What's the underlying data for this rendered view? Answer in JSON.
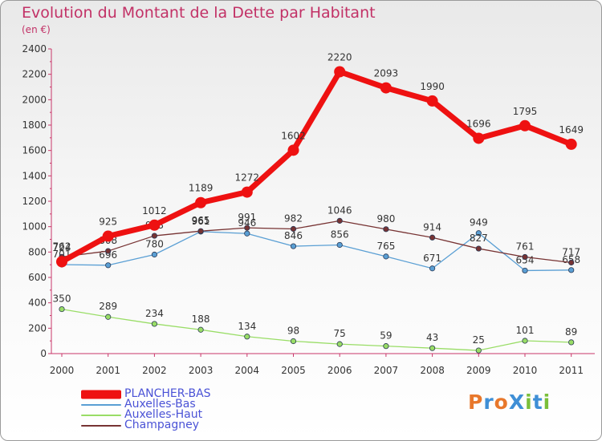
{
  "title": "Evolution du Montant de la Dette par Habitant",
  "subtitle": "(en €)",
  "logo": {
    "text": "ProXiti",
    "colors": [
      "#e8782c",
      "#3f8fd6",
      "#e8782c",
      "#3f8fd6",
      "#7bbf3a",
      "#3f8fd6",
      "#7bbf3a"
    ]
  },
  "chart_data": {
    "type": "line",
    "x": [
      "2000",
      "2001",
      "2002",
      "2003",
      "2004",
      "2005",
      "2006",
      "2007",
      "2008",
      "2009",
      "2010",
      "2011"
    ],
    "ylim": [
      0,
      2400
    ],
    "yticks": [
      "0",
      "200",
      "400",
      "600",
      "800",
      "1000",
      "1200",
      "1400",
      "1600",
      "1800",
      "2000",
      "2200",
      "2400"
    ],
    "grid": false,
    "series": [
      {
        "name": "PLANCHER-BAS",
        "color": "#ee1111",
        "values": [
          724,
          925,
          1012,
          1189,
          1272,
          1602,
          2220,
          2093,
          1990,
          1696,
          1795,
          1649
        ],
        "labels": [
          "724",
          "925",
          "1012",
          "1189",
          "1272",
          "1602",
          "2220",
          "2093",
          "1990",
          "1696",
          "1795",
          "1649"
        ]
      },
      {
        "name": "Auxelles-Bas",
        "color": "#5a9fd4",
        "values": [
          701,
          696,
          780,
          961,
          946,
          846,
          856,
          765,
          671,
          949,
          654,
          658
        ],
        "labels": [
          "701",
          "696",
          "780",
          "961",
          "946",
          "846",
          "856",
          "765",
          "671",
          "949",
          "654",
          "658"
        ]
      },
      {
        "name": "Auxelles-Haut",
        "color": "#99dd66",
        "values": [
          350,
          289,
          234,
          188,
          134,
          98,
          75,
          59,
          43,
          25,
          101,
          89
        ],
        "labels": [
          "350",
          "289",
          "234",
          "188",
          "134",
          "98",
          "75",
          "59",
          "43",
          "25",
          "101",
          "89"
        ]
      },
      {
        "name": "Champagney",
        "color": "#773333",
        "values": [
          762,
          808,
          928,
          965,
          991,
          982,
          1046,
          980,
          914,
          827,
          761,
          717
        ],
        "labels": [
          "762",
          "808",
          "928",
          "965",
          "991",
          "982",
          "1046",
          "980",
          "914",
          "827",
          "761",
          "717"
        ]
      }
    ]
  }
}
